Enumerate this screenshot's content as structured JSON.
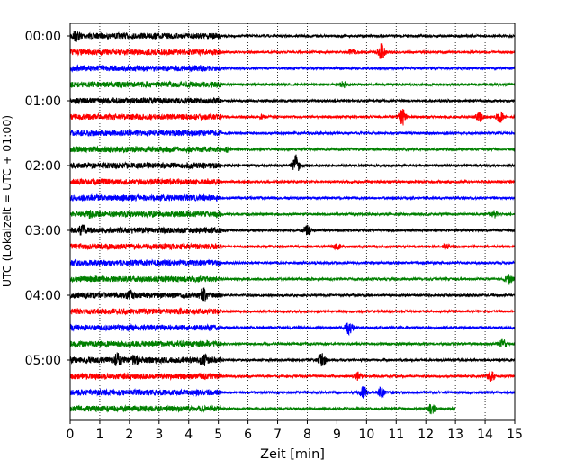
{
  "chart_data": {
    "type": "line",
    "title": "",
    "xlabel": "Zeit  [min]",
    "ylabel": "UTC (Lokalzeit = UTC + 01:00)",
    "xlim": [
      0,
      15
    ],
    "x_ticks": [
      "0",
      "1",
      "2",
      "3",
      "4",
      "5",
      "6",
      "7",
      "8",
      "9",
      "10",
      "11",
      "12",
      "13",
      "14",
      "15"
    ],
    "y_ticks": [
      "00:00",
      "01:00",
      "02:00",
      "03:00",
      "04:00",
      "05:00"
    ],
    "y_tick_rows": [
      0,
      4,
      8,
      12,
      16,
      20
    ],
    "grid": "vertical-dotted",
    "legend": "none",
    "colors": [
      "#000000",
      "#ff0000",
      "#0000ff",
      "#008000"
    ],
    "row_interval_min": 15,
    "rows": [
      {
        "start": "00:00",
        "color": "#000000",
        "events": [
          [
            0.2,
            0.5
          ]
        ]
      },
      {
        "start": "00:15",
        "color": "#ff0000",
        "events": [
          [
            10.5,
            1.0
          ],
          [
            9.5,
            0.25
          ]
        ]
      },
      {
        "start": "00:30",
        "color": "#0000ff",
        "events": []
      },
      {
        "start": "00:45",
        "color": "#008000",
        "events": [
          [
            9.2,
            0.3
          ]
        ]
      },
      {
        "start": "01:00",
        "color": "#000000",
        "events": []
      },
      {
        "start": "01:15",
        "color": "#ff0000",
        "events": [
          [
            11.2,
            1.0
          ],
          [
            13.8,
            0.55
          ],
          [
            14.5,
            0.65
          ],
          [
            6.5,
            0.2
          ]
        ]
      },
      {
        "start": "01:30",
        "color": "#0000ff",
        "events": []
      },
      {
        "start": "01:45",
        "color": "#008000",
        "events": [
          [
            5.3,
            0.3
          ]
        ]
      },
      {
        "start": "02:00",
        "color": "#000000",
        "events": [
          [
            7.6,
            1.3
          ]
        ]
      },
      {
        "start": "02:15",
        "color": "#ff0000",
        "events": []
      },
      {
        "start": "02:30",
        "color": "#0000ff",
        "events": []
      },
      {
        "start": "02:45",
        "color": "#008000",
        "events": [
          [
            0.7,
            0.3
          ],
          [
            14.3,
            0.4
          ]
        ]
      },
      {
        "start": "03:00",
        "color": "#000000",
        "events": [
          [
            0.4,
            0.4
          ],
          [
            8.0,
            0.6
          ]
        ]
      },
      {
        "start": "03:15",
        "color": "#ff0000",
        "events": [
          [
            9.0,
            0.3
          ],
          [
            12.7,
            0.25
          ]
        ]
      },
      {
        "start": "03:30",
        "color": "#0000ff",
        "events": []
      },
      {
        "start": "03:45",
        "color": "#008000",
        "events": [
          [
            14.8,
            0.6
          ]
        ]
      },
      {
        "start": "04:00",
        "color": "#000000",
        "events": [
          [
            4.5,
            0.6
          ],
          [
            2.0,
            0.3
          ]
        ]
      },
      {
        "start": "04:15",
        "color": "#ff0000",
        "events": []
      },
      {
        "start": "04:30",
        "color": "#0000ff",
        "events": [
          [
            9.4,
            0.8
          ]
        ]
      },
      {
        "start": "04:45",
        "color": "#008000",
        "events": [
          [
            14.6,
            0.5
          ]
        ]
      },
      {
        "start": "05:00",
        "color": "#000000",
        "events": [
          [
            8.5,
            0.9
          ],
          [
            1.6,
            0.6
          ],
          [
            4.5,
            0.5
          ],
          [
            2.2,
            0.4
          ]
        ]
      },
      {
        "start": "05:15",
        "color": "#ff0000",
        "events": [
          [
            9.7,
            0.45
          ],
          [
            14.2,
            0.6
          ]
        ]
      },
      {
        "start": "05:30",
        "color": "#0000ff",
        "events": [
          [
            9.9,
            0.7
          ],
          [
            10.5,
            0.6
          ]
        ]
      },
      {
        "start": "05:45",
        "color": "#008000",
        "events": [
          [
            12.2,
            0.6
          ]
        ],
        "end_min": 13.0
      }
    ]
  }
}
